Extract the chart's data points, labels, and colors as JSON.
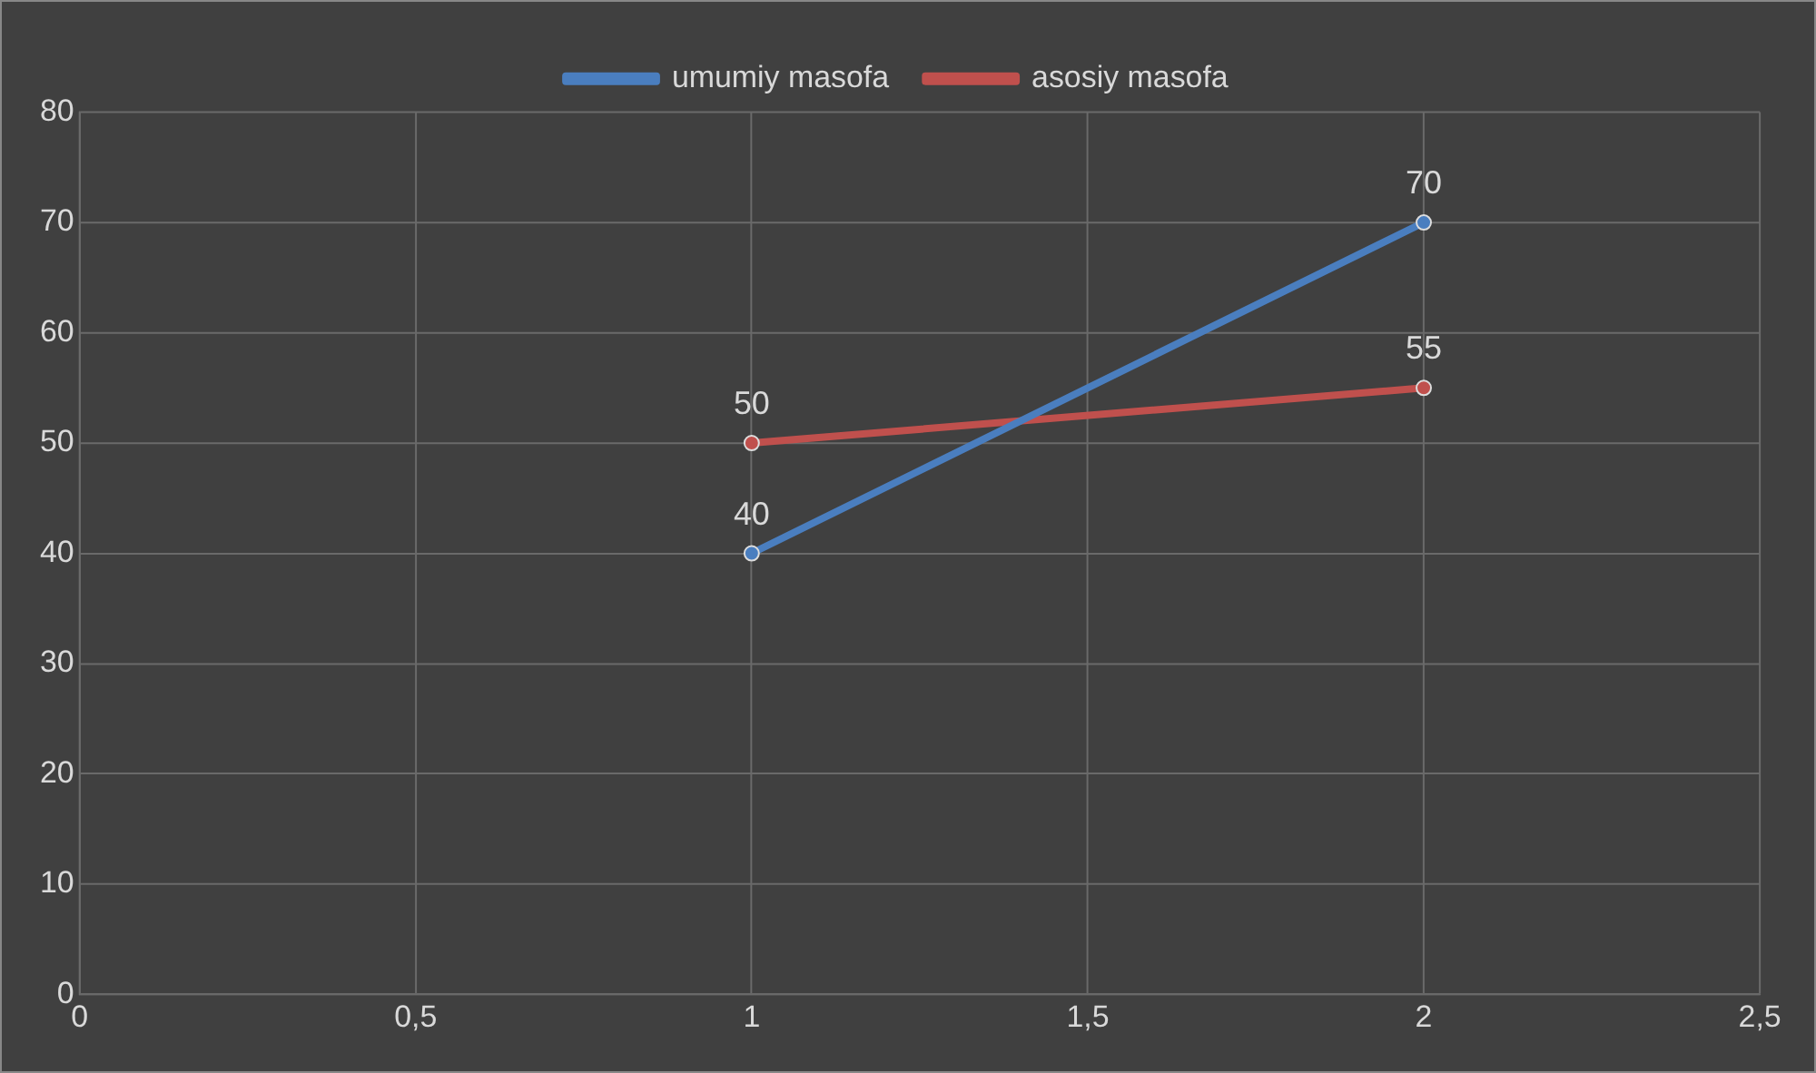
{
  "chart_data": {
    "type": "line",
    "x": [
      1,
      2
    ],
    "series": [
      {
        "name": "umumiy masofa",
        "color": "#4a7ebf",
        "values": [
          40,
          70
        ]
      },
      {
        "name": "asosiy masofa",
        "color": "#c0504d",
        "values": [
          50,
          55
        ]
      }
    ],
    "xlim": [
      0,
      2.5
    ],
    "xticks": [
      0,
      {
        "value": 0.5,
        "label": "0,5"
      },
      1,
      {
        "value": 1.5,
        "label": "1,5"
      },
      2,
      {
        "value": 2.5,
        "label": "2,5"
      }
    ],
    "ylim": [
      0,
      80
    ],
    "yticks": [
      0,
      10,
      20,
      30,
      40,
      50,
      60,
      70,
      80
    ],
    "grid": true,
    "legend": "top",
    "marker": "circle",
    "line_style": "solid",
    "data_labels": true
  }
}
